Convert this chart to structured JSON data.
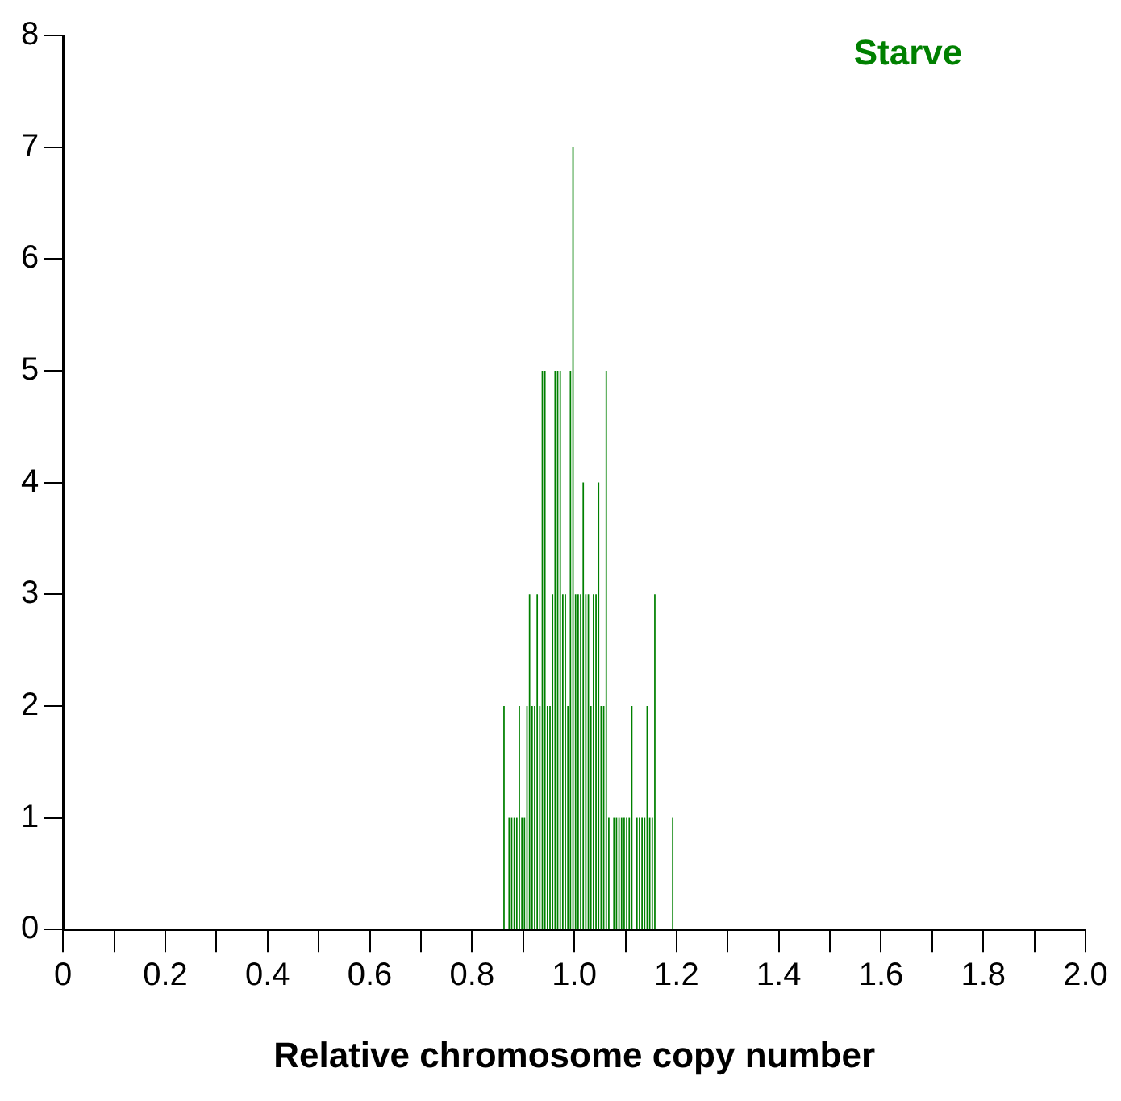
{
  "chart_data": {
    "type": "histogram",
    "bins": [
      0.86,
      0.865,
      0.87,
      0.875,
      0.88,
      0.885,
      0.89,
      0.895,
      0.9,
      0.905,
      0.91,
      0.915,
      0.92,
      0.925,
      0.93,
      0.935,
      0.94,
      0.945,
      0.95,
      0.955,
      0.96,
      0.965,
      0.97,
      0.975,
      0.98,
      0.985,
      0.99,
      0.995,
      1.0,
      1.005,
      1.01,
      1.015,
      1.02,
      1.025,
      1.03,
      1.035,
      1.04,
      1.045,
      1.05,
      1.055,
      1.06,
      1.065,
      1.07,
      1.075,
      1.08,
      1.085,
      1.09,
      1.095,
      1.1,
      1.105,
      1.11,
      1.115,
      1.12,
      1.125,
      1.13,
      1.135,
      1.14,
      1.145,
      1.15,
      1.155,
      1.16,
      1.165,
      1.17,
      1.175,
      1.18,
      1.185,
      1.19,
      1.195
    ],
    "values": [
      2,
      0,
      1,
      1,
      1,
      1,
      2,
      1,
      1,
      2,
      3,
      2,
      2,
      3,
      2,
      5,
      5,
      2,
      2,
      3,
      5,
      5,
      5,
      3,
      3,
      2,
      5,
      7,
      3,
      3,
      3,
      4,
      3,
      3,
      2,
      3,
      3,
      4,
      2,
      2,
      5,
      1,
      0,
      1,
      1,
      1,
      1,
      1,
      1,
      1,
      2,
      0,
      1,
      1,
      1,
      1,
      2,
      1,
      1,
      3,
      0,
      0,
      0,
      0,
      0,
      0,
      1
    ],
    "color": "#008000",
    "xlabel": "Relative chromosome copy number",
    "annotations": [
      "Starve"
    ],
    "xlim": [
      0,
      2.0
    ],
    "xticks": [
      0,
      {
        "value": 0.1,
        "label": null
      },
      0.2,
      {
        "value": 0.3,
        "label": null
      },
      0.4,
      {
        "value": 0.5,
        "label": null
      },
      0.6,
      {
        "value": 0.7,
        "label": null
      },
      0.8,
      {
        "value": 0.9,
        "label": null
      },
      "1.0",
      {
        "value": 1.1,
        "label": null
      },
      1.2,
      {
        "value": 1.3,
        "label": null
      },
      1.4,
      {
        "value": 1.5,
        "label": null
      },
      1.6,
      {
        "value": 1.7,
        "label": null
      },
      1.8,
      {
        "value": 1.9,
        "label": null
      },
      "2.0"
    ],
    "ylim": [
      0,
      8
    ],
    "yticks": [
      0,
      1,
      2,
      3,
      4,
      5,
      6,
      7,
      8
    ],
    "grid": false,
    "legend": false
  }
}
